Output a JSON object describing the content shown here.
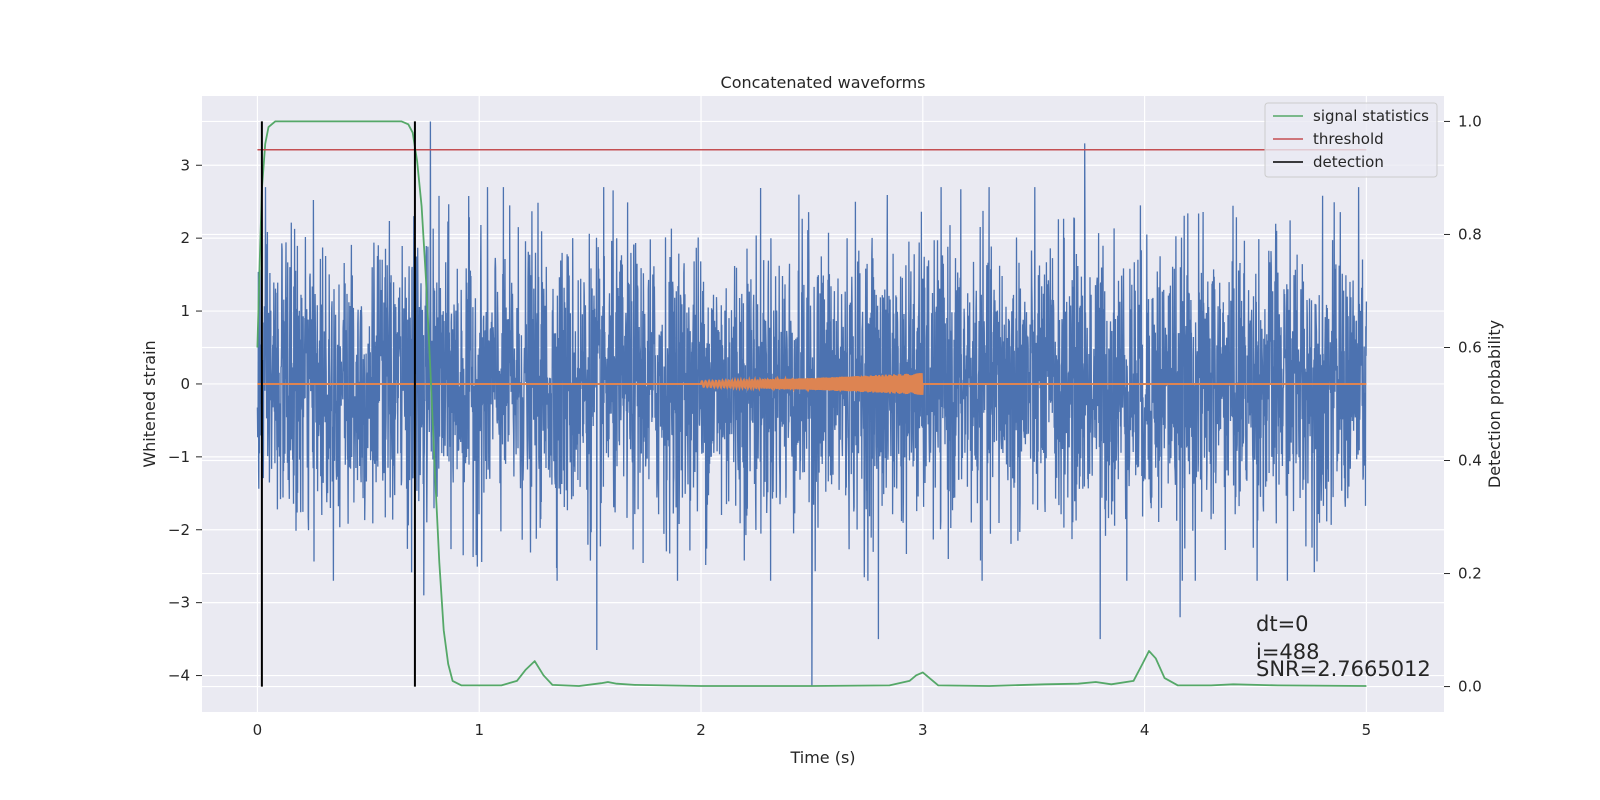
{
  "chart_data": {
    "type": "line",
    "title": "Concatenated waveforms",
    "xlabel": "Time (s)",
    "ylabel": "Whitened strain",
    "y2label": "Detection probability",
    "xlim": [
      -0.25,
      5.35
    ],
    "ylim": [
      -4.5,
      3.95
    ],
    "y2lim": [
      -0.045,
      1.045
    ],
    "x_ticks": [
      0,
      1,
      2,
      3,
      4,
      5
    ],
    "y_ticks": [
      3,
      2,
      1,
      0,
      -1,
      -2,
      -3,
      -4
    ],
    "y_tick_labels": [
      "3",
      "2",
      "1",
      "0",
      "−1",
      "−2",
      "−3",
      "−4"
    ],
    "y2_ticks": [
      1.0,
      0.8,
      0.6,
      0.4,
      0.2,
      0.0
    ],
    "y2_tick_labels": [
      "1.0",
      "0.8",
      "0.6",
      "0.4",
      "0.2",
      "0.0"
    ],
    "grid": true,
    "legend_position": "top-right",
    "colors": {
      "background": "#eaeaf2",
      "grid": "#ffffff",
      "noise": "#4c72b0",
      "template": "#dd8452",
      "signal_statistics": "#55a868",
      "threshold": "#c44e52",
      "detection": "#000000"
    },
    "series": [
      {
        "name": "",
        "role": "whitened strain (noise)",
        "x_range": [
          0,
          5
        ],
        "typical_amplitude": 1.0,
        "peaks": [
          {
            "x": 0.78,
            "y": 3.6
          },
          {
            "x": 0.75,
            "y": -2.9
          },
          {
            "x": 1.53,
            "y": -3.65
          },
          {
            "x": 2.5,
            "y": -4.15
          },
          {
            "x": 2.8,
            "y": -3.5
          },
          {
            "x": 3.73,
            "y": 3.3
          },
          {
            "x": 3.8,
            "y": -3.5
          },
          {
            "x": 4.16,
            "y": -3.2
          }
        ]
      },
      {
        "name": "",
        "role": "injected waveform",
        "x": [
          0,
          2,
          2.5,
          3,
          3.01,
          5
        ],
        "amplitude": [
          0,
          0.04,
          0.08,
          0.15,
          0,
          0
        ]
      },
      {
        "name": "signal statistics",
        "axis": "right",
        "x": [
          0,
          0.01,
          0.02,
          0.035,
          0.05,
          0.08,
          0.12,
          0.3,
          0.5,
          0.65,
          0.68,
          0.7,
          0.72,
          0.74,
          0.76,
          0.78,
          0.8,
          0.82,
          0.84,
          0.86,
          0.88,
          0.92,
          1.0,
          1.1,
          1.17,
          1.21,
          1.25,
          1.29,
          1.33,
          1.45,
          1.55,
          1.58,
          1.62,
          1.7,
          2.0,
          2.5,
          2.85,
          2.94,
          2.97,
          3.0,
          3.03,
          3.07,
          3.3,
          3.55,
          3.7,
          3.78,
          3.85,
          3.95,
          3.99,
          4.02,
          4.05,
          4.09,
          4.15,
          4.3,
          4.4,
          4.6,
          5.0
        ],
        "y": [
          0.6,
          0.75,
          0.88,
          0.96,
          0.99,
          1.0,
          1.0,
          1.0,
          1.0,
          1.0,
          0.995,
          0.98,
          0.93,
          0.85,
          0.72,
          0.56,
          0.38,
          0.22,
          0.1,
          0.04,
          0.01,
          0.002,
          0.002,
          0.002,
          0.01,
          0.03,
          0.045,
          0.02,
          0.003,
          0.001,
          0.006,
          0.008,
          0.005,
          0.003,
          0.001,
          0.001,
          0.002,
          0.01,
          0.02,
          0.025,
          0.015,
          0.002,
          0.001,
          0.004,
          0.005,
          0.008,
          0.004,
          0.01,
          0.04,
          0.063,
          0.05,
          0.015,
          0.002,
          0.002,
          0.004,
          0.002,
          0.001
        ]
      },
      {
        "name": "threshold",
        "axis": "right",
        "x": [
          0,
          5
        ],
        "y": [
          0.95,
          0.95
        ]
      },
      {
        "name": "detection",
        "axis": "right",
        "type": "vlines",
        "x": [
          0.02,
          0.71
        ],
        "y_range": [
          0.0,
          1.0
        ]
      }
    ],
    "annotations": [
      "dt=0",
      "i=488",
      "SNR=2.7665012"
    ]
  }
}
